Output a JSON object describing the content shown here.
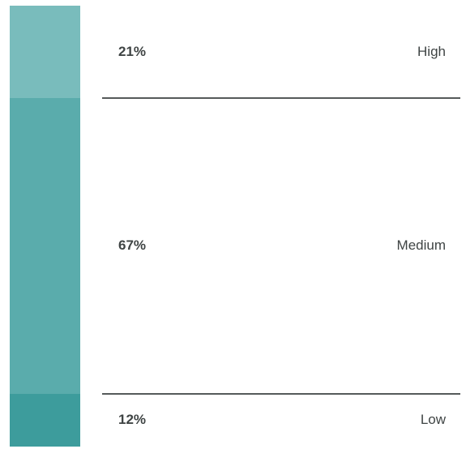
{
  "chart_data": {
    "type": "bar",
    "stacked": true,
    "orientation": "vertical",
    "categories": [
      "High",
      "Medium",
      "Low"
    ],
    "values": [
      21,
      67,
      12
    ],
    "value_labels": [
      "21%",
      "67%",
      "12%"
    ],
    "colors": [
      "#79bcbc",
      "#5aacac",
      "#3d9c9c"
    ],
    "title": "",
    "xlabel": "",
    "ylabel": ""
  }
}
